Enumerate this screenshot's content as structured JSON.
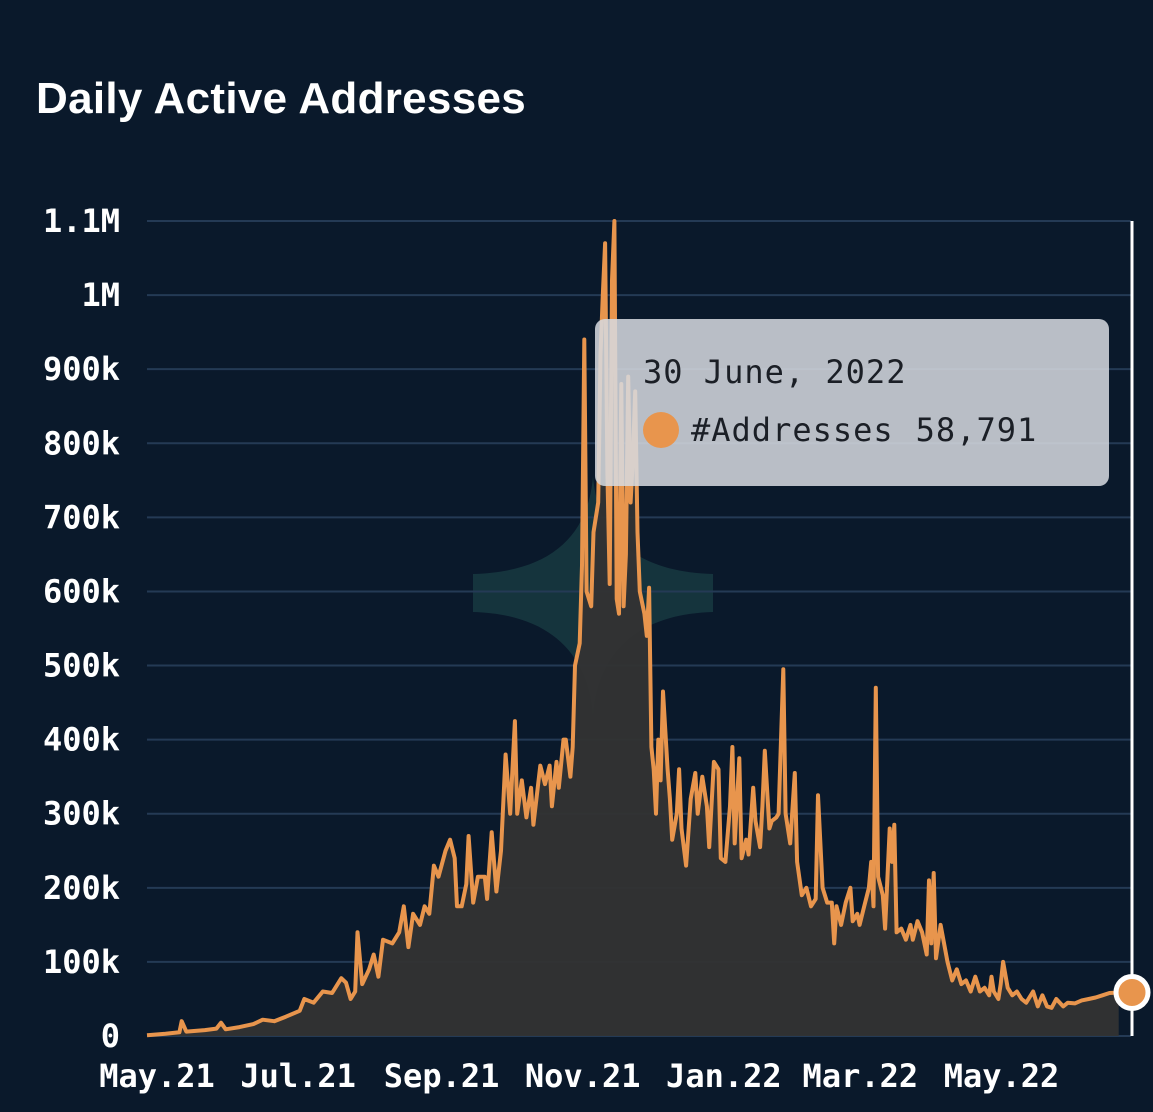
{
  "title": "Daily Active Addresses",
  "colors": {
    "background": "#0a192b",
    "line": "#e8954d",
    "area": "#333333",
    "grid": "#243a55",
    "watermark": "#1a3e44"
  },
  "tooltip": {
    "date": "30 June, 2022",
    "series_label": "#Addresses",
    "value": "58,791"
  },
  "chart_data": {
    "type": "area",
    "title": "Daily Active Addresses",
    "xlabel": "",
    "ylabel": "",
    "ylim": [
      0,
      1100000
    ],
    "y_ticks": [
      {
        "value": 0,
        "label": "0"
      },
      {
        "value": 100000,
        "label": "100k"
      },
      {
        "value": 200000,
        "label": "200k"
      },
      {
        "value": 300000,
        "label": "300k"
      },
      {
        "value": 400000,
        "label": "400k"
      },
      {
        "value": 500000,
        "label": "500k"
      },
      {
        "value": 600000,
        "label": "600k"
      },
      {
        "value": 700000,
        "label": "700k"
      },
      {
        "value": 800000,
        "label": "800k"
      },
      {
        "value": 900000,
        "label": "900k"
      },
      {
        "value": 1000000,
        "label": "1M"
      },
      {
        "value": 1100000,
        "label": "1.1M"
      }
    ],
    "x_range_days": [
      0,
      424
    ],
    "x_ticks": [
      {
        "day": 0,
        "label": "May.21"
      },
      {
        "day": 61,
        "label": "Jul.21"
      },
      {
        "day": 123,
        "label": "Sep.21"
      },
      {
        "day": 184,
        "label": "Nov.21"
      },
      {
        "day": 245,
        "label": "Jan.22"
      },
      {
        "day": 304,
        "label": "Mar.22"
      },
      {
        "day": 365,
        "label": "May.22"
      }
    ],
    "grid": true,
    "series": [
      {
        "name": "#Addresses",
        "points": [
          [
            0,
            1000
          ],
          [
            8,
            3000
          ],
          [
            14,
            5000
          ],
          [
            15,
            20000
          ],
          [
            17,
            6000
          ],
          [
            25,
            8000
          ],
          [
            30,
            10000
          ],
          [
            32,
            18000
          ],
          [
            34,
            9000
          ],
          [
            40,
            12000
          ],
          [
            46,
            16000
          ],
          [
            50,
            22000
          ],
          [
            55,
            20000
          ],
          [
            60,
            26000
          ],
          [
            66,
            34000
          ],
          [
            68,
            50000
          ],
          [
            72,
            45000
          ],
          [
            76,
            60000
          ],
          [
            80,
            58000
          ],
          [
            84,
            78000
          ],
          [
            86,
            72000
          ],
          [
            88,
            50000
          ],
          [
            90,
            60000
          ],
          [
            91,
            140000
          ],
          [
            93,
            70000
          ],
          [
            96,
            90000
          ],
          [
            98,
            110000
          ],
          [
            100,
            80000
          ],
          [
            102,
            130000
          ],
          [
            106,
            125000
          ],
          [
            109,
            140000
          ],
          [
            111,
            175000
          ],
          [
            113,
            120000
          ],
          [
            115,
            165000
          ],
          [
            118,
            150000
          ],
          [
            120,
            175000
          ],
          [
            122,
            165000
          ],
          [
            124,
            230000
          ],
          [
            126,
            215000
          ],
          [
            129,
            250000
          ],
          [
            131,
            265000
          ],
          [
            133,
            240000
          ],
          [
            134,
            175000
          ],
          [
            136,
            175000
          ],
          [
            138,
            205000
          ],
          [
            139,
            270000
          ],
          [
            141,
            180000
          ],
          [
            143,
            215000
          ],
          [
            146,
            215000
          ],
          [
            147,
            185000
          ],
          [
            149,
            275000
          ],
          [
            151,
            195000
          ],
          [
            153,
            250000
          ],
          [
            155,
            380000
          ],
          [
            157,
            300000
          ],
          [
            159,
            425000
          ],
          [
            160,
            300000
          ],
          [
            162,
            345000
          ],
          [
            164,
            295000
          ],
          [
            166,
            335000
          ],
          [
            167,
            285000
          ],
          [
            170,
            365000
          ],
          [
            172,
            340000
          ],
          [
            174,
            365000
          ],
          [
            175,
            310000
          ],
          [
            177,
            370000
          ],
          [
            178,
            335000
          ],
          [
            180,
            400000
          ],
          [
            181,
            400000
          ],
          [
            183,
            350000
          ],
          [
            184,
            390000
          ],
          [
            185,
            500000
          ],
          [
            187,
            530000
          ],
          [
            188,
            635000
          ],
          [
            189,
            940000
          ],
          [
            190,
            600000
          ],
          [
            192,
            580000
          ],
          [
            193,
            680000
          ],
          [
            195,
            720000
          ],
          [
            196,
            920000
          ],
          [
            197,
            1000000
          ],
          [
            198,
            1070000
          ],
          [
            199,
            760000
          ],
          [
            200,
            610000
          ],
          [
            201,
            1020000
          ],
          [
            202,
            1100000
          ],
          [
            203,
            590000
          ],
          [
            204,
            570000
          ],
          [
            205,
            880000
          ],
          [
            206,
            580000
          ],
          [
            207,
            650000
          ],
          [
            208,
            890000
          ],
          [
            209,
            720000
          ],
          [
            210,
            780000
          ],
          [
            211,
            870000
          ],
          [
            212,
            680000
          ],
          [
            213,
            600000
          ],
          [
            215,
            570000
          ],
          [
            216,
            540000
          ],
          [
            217,
            605000
          ],
          [
            218,
            390000
          ],
          [
            219,
            360000
          ],
          [
            220,
            300000
          ],
          [
            221,
            400000
          ],
          [
            222,
            345000
          ],
          [
            223,
            465000
          ],
          [
            225,
            360000
          ],
          [
            226,
            320000
          ],
          [
            227,
            265000
          ],
          [
            229,
            300000
          ],
          [
            230,
            360000
          ],
          [
            231,
            280000
          ],
          [
            233,
            230000
          ],
          [
            235,
            320000
          ],
          [
            237,
            355000
          ],
          [
            238,
            300000
          ],
          [
            240,
            350000
          ],
          [
            242,
            310000
          ],
          [
            243,
            255000
          ],
          [
            245,
            370000
          ],
          [
            247,
            360000
          ],
          [
            248,
            240000
          ],
          [
            250,
            235000
          ],
          [
            252,
            310000
          ],
          [
            253,
            390000
          ],
          [
            254,
            260000
          ],
          [
            256,
            375000
          ],
          [
            257,
            240000
          ],
          [
            259,
            265000
          ],
          [
            260,
            245000
          ],
          [
            262,
            335000
          ],
          [
            263,
            290000
          ],
          [
            265,
            255000
          ],
          [
            266,
            310000
          ],
          [
            267,
            385000
          ],
          [
            269,
            280000
          ],
          [
            270,
            290000
          ],
          [
            272,
            295000
          ],
          [
            273,
            300000
          ],
          [
            275,
            495000
          ],
          [
            276,
            300000
          ],
          [
            278,
            260000
          ],
          [
            280,
            355000
          ],
          [
            281,
            235000
          ],
          [
            283,
            190000
          ],
          [
            285,
            200000
          ],
          [
            287,
            175000
          ],
          [
            289,
            185000
          ],
          [
            290,
            325000
          ],
          [
            292,
            200000
          ],
          [
            294,
            180000
          ],
          [
            296,
            180000
          ],
          [
            297,
            125000
          ],
          [
            298,
            175000
          ],
          [
            300,
            150000
          ],
          [
            302,
            180000
          ],
          [
            304,
            200000
          ],
          [
            305,
            155000
          ],
          [
            307,
            165000
          ],
          [
            308,
            150000
          ],
          [
            310,
            175000
          ],
          [
            312,
            200000
          ],
          [
            313,
            235000
          ],
          [
            314,
            175000
          ],
          [
            315,
            470000
          ],
          [
            316,
            215000
          ],
          [
            318,
            190000
          ],
          [
            319,
            145000
          ],
          [
            321,
            280000
          ],
          [
            322,
            235000
          ],
          [
            323,
            285000
          ],
          [
            324,
            140000
          ],
          [
            326,
            145000
          ],
          [
            328,
            130000
          ],
          [
            330,
            150000
          ],
          [
            331,
            130000
          ],
          [
            333,
            155000
          ],
          [
            335,
            140000
          ],
          [
            337,
            110000
          ],
          [
            338,
            210000
          ],
          [
            339,
            125000
          ],
          [
            340,
            220000
          ],
          [
            341,
            105000
          ],
          [
            343,
            150000
          ],
          [
            346,
            100000
          ],
          [
            348,
            75000
          ],
          [
            350,
            90000
          ],
          [
            352,
            70000
          ],
          [
            354,
            75000
          ],
          [
            356,
            60000
          ],
          [
            358,
            80000
          ],
          [
            360,
            60000
          ],
          [
            362,
            65000
          ],
          [
            364,
            55000
          ],
          [
            365,
            80000
          ],
          [
            366,
            60000
          ],
          [
            368,
            50000
          ],
          [
            369,
            70000
          ],
          [
            370,
            100000
          ],
          [
            372,
            65000
          ],
          [
            374,
            55000
          ],
          [
            376,
            60000
          ],
          [
            378,
            50000
          ],
          [
            380,
            45000
          ],
          [
            383,
            60000
          ],
          [
            385,
            40000
          ],
          [
            387,
            55000
          ],
          [
            389,
            40000
          ],
          [
            391,
            38000
          ],
          [
            393,
            50000
          ],
          [
            396,
            40000
          ],
          [
            398,
            45000
          ],
          [
            401,
            44000
          ],
          [
            404,
            48000
          ],
          [
            407,
            50000
          ],
          [
            410,
            52000
          ],
          [
            413,
            55000
          ],
          [
            416,
            58000
          ],
          [
            418,
            58500
          ],
          [
            420,
            58791
          ]
        ]
      }
    ],
    "highlight": {
      "day": 420,
      "value": 58791,
      "date": "30 June, 2022"
    }
  }
}
